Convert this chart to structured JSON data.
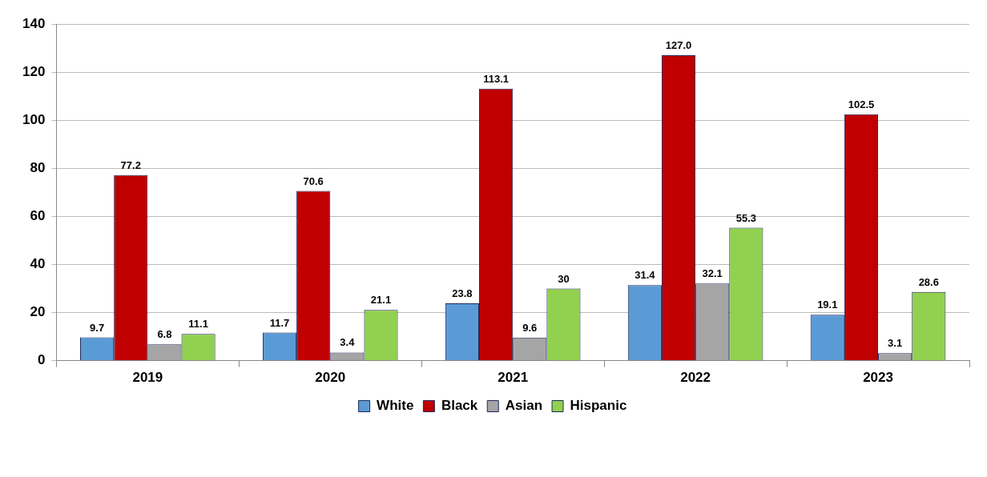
{
  "chart_data": {
    "type": "bar",
    "categories": [
      "2019",
      "2020",
      "2021",
      "2022",
      "2023"
    ],
    "series": [
      {
        "name": "White",
        "color": "#5b9bd5",
        "values": [
          9.7,
          11.7,
          23.8,
          31.4,
          19.1
        ],
        "value_labels": [
          "9.7",
          "11.7",
          "23.8",
          "31.4",
          "19.1"
        ]
      },
      {
        "name": "Black",
        "color": "#c00000",
        "values": [
          77.2,
          70.6,
          113.1,
          127.0,
          102.5
        ],
        "value_labels": [
          "77.2",
          "70.6",
          "113.1",
          "127.0",
          "102.5"
        ]
      },
      {
        "name": "Asian",
        "color": "#a5a5a5",
        "values": [
          6.8,
          3.4,
          9.6,
          32.1,
          3.1
        ],
        "value_labels": [
          "6.8",
          "3.4",
          "9.6",
          "32.1",
          "3.1"
        ]
      },
      {
        "name": "Hispanic",
        "color": "#92d050",
        "values": [
          11.1,
          21.1,
          30,
          55.3,
          28.6
        ],
        "value_labels": [
          "11.1",
          "21.1",
          "30",
          "55.3",
          "28.6"
        ]
      }
    ],
    "ylim": [
      0,
      140
    ],
    "yticks": [
      0,
      20,
      40,
      60,
      80,
      100,
      120,
      140
    ],
    "grid": "y",
    "legend": "bottom"
  }
}
